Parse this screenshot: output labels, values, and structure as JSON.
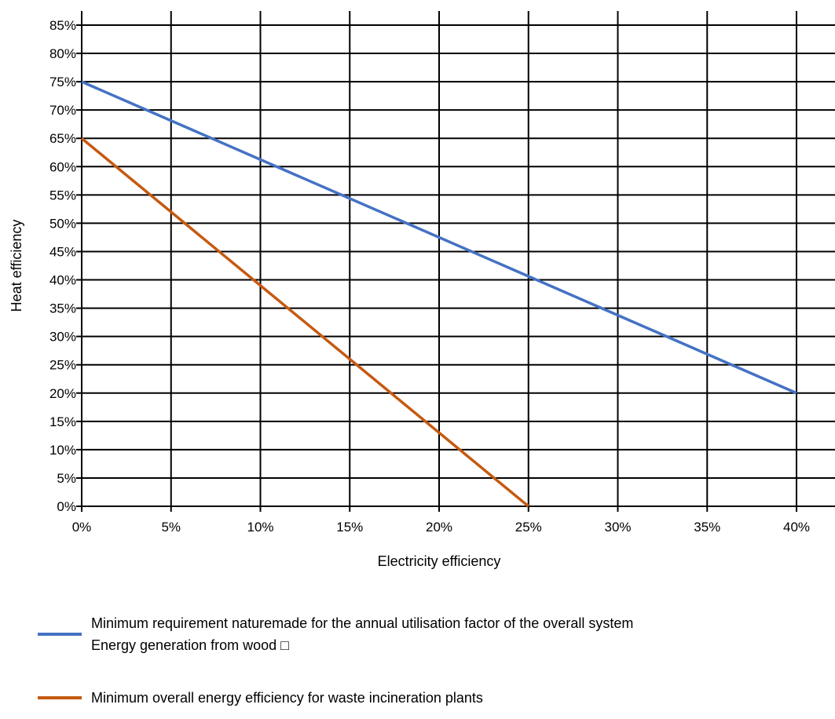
{
  "chart_data": {
    "type": "line",
    "xlabel": "Electricity efficiency",
    "ylabel": "Heat efficiency",
    "xlim": [
      0,
      40
    ],
    "ylim": [
      0,
      85
    ],
    "x_ticks": [
      "0%",
      "5%",
      "10%",
      "15%",
      "20%",
      "25%",
      "30%",
      "35%",
      "40%"
    ],
    "y_ticks": [
      "0%",
      "5%",
      "10%",
      "15%",
      "20%",
      "25%",
      "30%",
      "35%",
      "40%",
      "45%",
      "50%",
      "55%",
      "60%",
      "65%",
      "70%",
      "75%",
      "80%",
      "85%"
    ],
    "grid": true,
    "legend_position": "bottom",
    "series": [
      {
        "name": "Minimum requirement naturemade for the annual utilisation factor of the overall system",
        "name_line2": "Energy generation from wood □",
        "color": "#4472C4",
        "points": [
          [
            0,
            75
          ],
          [
            40,
            20
          ]
        ]
      },
      {
        "name": "Minimum overall energy efficiency for waste incineration plants",
        "color": "#C55A11",
        "points": [
          [
            0,
            65
          ],
          [
            25,
            0
          ]
        ]
      }
    ]
  }
}
